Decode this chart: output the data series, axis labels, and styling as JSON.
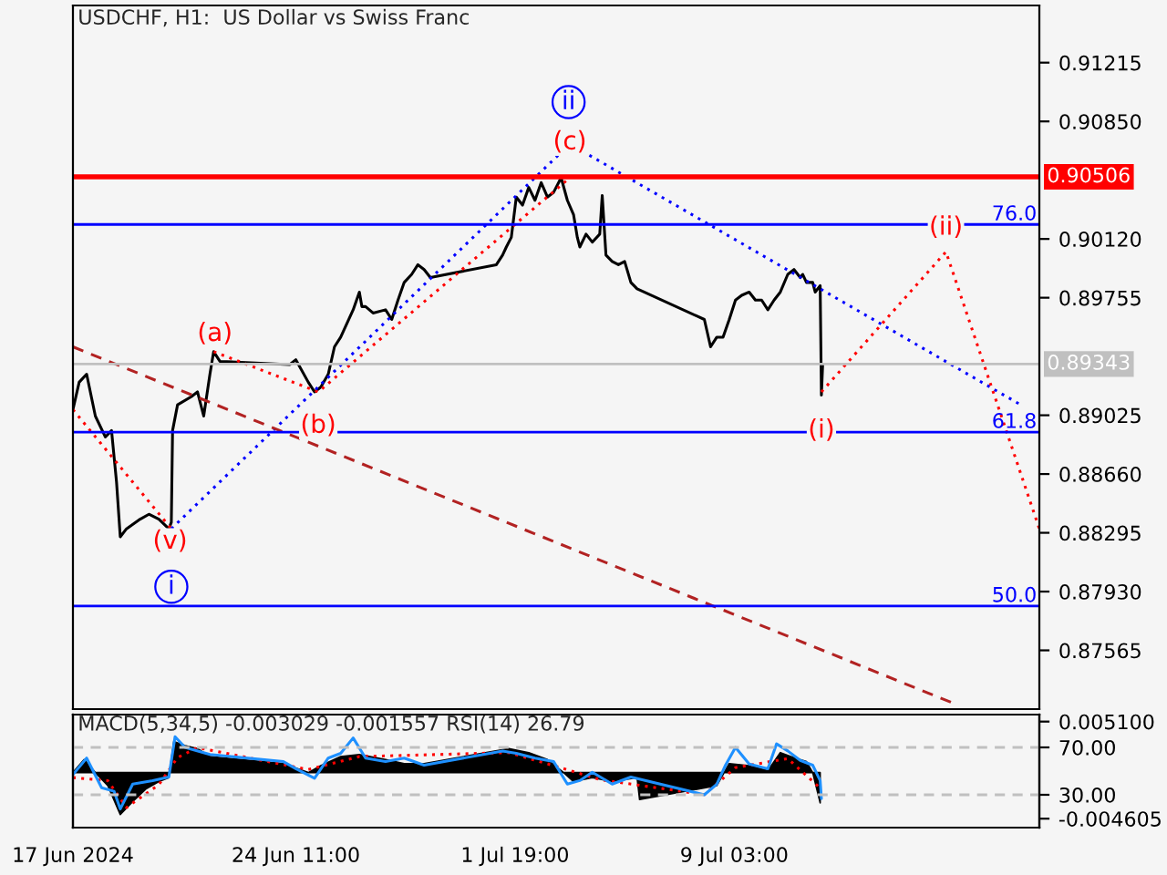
{
  "chart_data": [
    {
      "type": "line",
      "title": "USDCHF, H1:  US Dollar vs Swiss Franc",
      "xlim": [
        "2024-06-17T00:00",
        "2024-07-19T08:00"
      ],
      "ylim": [
        0.872,
        0.9157
      ],
      "xticks": [
        {
          "value": "2024-06-17T00:00",
          "label": null
        },
        {
          "value": "2024-06-24T11:00",
          "label": null
        },
        {
          "value": "2024-07-01T19:00",
          "label": null
        },
        {
          "value": "2024-07-09T03:00",
          "label": null
        }
      ],
      "yticks": [
        0.91215,
        {
          "value": 0.9085,
          "label": "0.90850"
        },
        {
          "value": 0.9012,
          "label": "0.90120"
        },
        0.89755,
        0.89025,
        {
          "value": 0.8866,
          "label": "0.88660"
        },
        0.88295,
        {
          "value": 0.8793,
          "label": "0.87930"
        },
        0.87565
      ],
      "tick_labels": "y",
      "legend": false,
      "grid": false,
      "series": [
        {
          "color": "#000000",
          "line_style": "solid",
          "x": [
            "2024-06-17T00:00",
            "2024-06-17T05:00",
            "2024-06-17T11:00",
            "2024-06-17T18:00",
            "2024-06-18T02:00",
            "2024-06-18T07:00",
            "2024-06-18T11:00",
            "2024-06-18T14:00",
            "2024-06-18T19:00",
            "2024-06-19T06:00",
            "2024-06-19T13:00",
            "2024-06-19T21:00",
            "2024-06-20T05:00",
            "2024-06-20T07:00",
            "2024-06-20T08:00",
            "2024-06-20T12:00",
            "2024-06-20T23:00",
            "2024-06-21T04:00",
            "2024-06-21T09:00",
            "2024-06-21T14:00",
            "2024-06-21T17:00",
            "2024-06-21T22:00",
            "2024-06-24T06:00",
            "2024-06-24T11:00",
            "2024-06-24T21:00",
            "2024-06-25T02:00",
            "2024-06-25T07:00",
            "2024-06-25T13:00",
            "2024-06-25T18:00",
            "2024-06-25T23:00",
            "2024-06-26T09:00",
            "2024-06-26T14:00",
            "2024-06-26T16:00",
            "2024-06-26T19:00",
            "2024-06-27T01:00",
            "2024-06-27T11:00",
            "2024-06-27T16:00",
            "2024-06-27T21:00",
            "2024-06-28T02:00",
            "2024-06-28T08:00",
            "2024-06-28T13:00",
            "2024-06-28T18:00",
            "2024-06-28T23:00",
            "2024-07-01T04:00",
            "2024-07-01T09:00",
            "2024-07-01T12:00",
            "2024-07-01T16:00",
            "2024-07-01T20:00",
            "2024-07-02T01:00",
            "2024-07-02T06:00",
            "2024-07-02T11:00",
            "2024-07-02T16:00",
            "2024-07-02T21:00",
            "2024-07-03T02:00",
            "2024-07-03T08:00",
            "2024-07-03T13:00",
            "2024-07-03T18:00",
            "2024-07-03T21:00",
            "2024-07-03T23:00",
            "2024-07-04T04:00",
            "2024-07-04T09:00",
            "2024-07-04T15:00",
            "2024-07-04T17:00",
            "2024-07-04T20:00",
            "2024-07-05T01:00",
            "2024-07-05T06:00",
            "2024-07-05T11:00",
            "2024-07-05T16:00",
            "2024-07-05T21:00",
            "2024-07-08T03:00",
            "2024-07-08T08:00",
            "2024-07-08T13:00",
            "2024-07-08T18:00",
            "2024-07-08T23:00",
            "2024-07-09T04:00",
            "2024-07-09T09:00",
            "2024-07-09T15:00",
            "2024-07-09T20:00",
            "2024-07-10T01:00",
            "2024-07-10T06:00",
            "2024-07-10T11:00",
            "2024-07-10T16:00",
            "2024-07-10T22:00",
            "2024-07-11T03:00",
            "2024-07-11T08:00",
            "2024-07-11T10:00",
            "2024-07-11T13:00",
            "2024-07-11T18:00",
            "2024-07-11T20:00",
            "2024-07-12T00:00",
            "2024-07-12T01:00",
            "2024-07-12T02:00"
          ],
          "values": [
            0.8906,
            0.8923,
            0.8928,
            0.8902,
            0.8889,
            0.8893,
            0.8861,
            0.8827,
            0.8832,
            0.8838,
            0.8841,
            0.8838,
            0.8832,
            0.8836,
            0.8893,
            0.8909,
            0.8914,
            0.8917,
            0.8902,
            0.8928,
            0.8942,
            0.8936,
            0.8934,
            0.8937,
            0.8923,
            0.8917,
            0.892,
            0.8928,
            0.8945,
            0.8951,
            0.8968,
            0.8979,
            0.897,
            0.897,
            0.8966,
            0.8968,
            0.8962,
            0.8974,
            0.8985,
            0.899,
            0.8996,
            0.8993,
            0.8988,
            0.8996,
            0.9002,
            0.9007,
            0.9013,
            0.9038,
            0.9033,
            0.9044,
            0.9036,
            0.9047,
            0.9038,
            0.9041,
            0.905,
            0.9036,
            0.9027,
            0.9013,
            0.9007,
            0.9015,
            0.901,
            0.9015,
            0.9039,
            0.9002,
            0.8998,
            0.8996,
            0.8998,
            0.8985,
            0.8981,
            0.8962,
            0.8945,
            0.8951,
            0.8951,
            0.8962,
            0.8974,
            0.8977,
            0.8979,
            0.8974,
            0.8974,
            0.8968,
            0.8974,
            0.8979,
            0.899,
            0.8993,
            0.8988,
            0.899,
            0.8985,
            0.8985,
            0.8979,
            0.8983,
            0.8915,
            0.8934
          ]
        },
        {
          "color": "#ff0000",
          "line_style": "dotted",
          "x": [
            "2024-06-17T00:00",
            "2024-06-20T07:00"
          ],
          "values": [
            0.8906,
            0.8832
          ]
        },
        {
          "color": "#ff0000",
          "line_style": "dotted",
          "x": [
            "2024-06-21T17:00",
            "2024-06-25T05:00",
            "2024-07-03T15:00"
          ],
          "values": [
            0.8942,
            0.8917,
            0.905
          ]
        },
        {
          "color": "#0000ff",
          "line_style": "dotted",
          "x": [
            "2024-06-20T07:00",
            "2024-07-03T15:00",
            "2024-07-18T17:00"
          ],
          "values": [
            0.8832,
            0.9071,
            0.8909
          ]
        },
        {
          "color": "#ff0000",
          "line_style": "dotted",
          "x": [
            "2024-07-12T01:00",
            "2024-07-16T05:00",
            "2024-07-19T08:00"
          ],
          "values": [
            0.8917,
            0.9004,
            0.8832
          ]
        },
        {
          "color": "#b22222",
          "line_style": "dashed",
          "x": [
            "2024-06-17T00:00",
            "2024-07-16T13:00"
          ],
          "values": [
            0.8945,
            0.8723
          ]
        }
      ],
      "ref_lines": [
        {
          "axis": "y",
          "value": 0.90506,
          "label": "0.90506",
          "color": "#ff0000"
        },
        {
          "axis": "y",
          "value": 0.9021,
          "color": "#0000ff"
        },
        {
          "axis": "y",
          "value": 0.89343,
          "label": "0.89343",
          "color": "#c0c0c0"
        },
        {
          "axis": "y",
          "value": 0.8892,
          "color": "#0000ff"
        },
        {
          "axis": "y",
          "value": 0.8784,
          "color": "#0000ff"
        }
      ],
      "annotations": [
        {
          "text": "(a)",
          "x": "2024-06-21T18:00",
          "y": 0.8953
        },
        {
          "text": "(b)",
          "x": "2024-06-25T05:00",
          "y": 0.8896
        },
        {
          "text": "(c)",
          "x": "2024-07-03T15:00",
          "y": 0.9072
        },
        {
          "text": "(v)",
          "x": "2024-06-20T06:00",
          "y": 0.8824
        },
        {
          "text": "(i)",
          "x": "2024-07-12T01:00",
          "y": 0.8893
        },
        {
          "text": "(ii)",
          "x": "2024-07-16T05:00",
          "y": 0.9019
        },
        {
          "text": "ii",
          "x": "2024-07-03T14:00",
          "y": 0.9097
        },
        {
          "text": "i",
          "x": "2024-06-20T07:00",
          "y": 0.8796
        },
        {
          "text": "76.0",
          "x": "2024-07-19T06:00",
          "y": 0.9021
        },
        {
          "text": "61.8",
          "x": "2024-07-19T06:00",
          "y": 0.8892
        },
        {
          "text": "50.0",
          "x": "2024-07-19T06:00",
          "y": 0.8784
        }
      ]
    },
    {
      "type": "line",
      "title": "MACD(5,34,5) -0.003029 -0.001557 RSI(14) 26.79",
      "xlim": [
        "2024-06-17T00:00",
        "2024-07-19T08:00"
      ],
      "ylim": [
        -0.0055,
        0.0058
      ],
      "y2lim": [
        2.3,
        97.7
      ],
      "xticks": [
        {
          "value": "2024-06-17T00:00",
          "label": "17 Jun 2024"
        },
        {
          "value": "2024-06-24T11:00",
          "label": "24 Jun 11:00"
        },
        {
          "value": "2024-07-01T19:00",
          "label": "1 Jul 19:00"
        },
        {
          "value": "2024-07-09T03:00",
          "label": "9 Jul 03:00"
        }
      ],
      "yticks": [
        {
          "value": 0.0051,
          "label": "0.005100"
        },
        -0.004605
      ],
      "y2ticks": [
        {
          "value": 70,
          "label": "70.00"
        },
        {
          "value": 30,
          "label": "30.00"
        }
      ],
      "legend": false,
      "grid": false,
      "series": [
        {
          "type": "area",
          "color": "#000000",
          "x": [
            "2024-06-17T00:00",
            "2024-06-17T09:00",
            "2024-06-17T18:00",
            "2024-06-18T04:00",
            "2024-06-18T14:00",
            "2024-06-19T00:00",
            "2024-06-19T11:00",
            "2024-06-19T21:00",
            "2024-06-20T05:00",
            "2024-06-20T09:00",
            "2024-06-20T18:00",
            "2024-06-21T04:00",
            "2024-06-21T14:00",
            "2024-06-24T01:00",
            "2024-06-24T21:00",
            "2024-06-25T07:00",
            "2024-06-25T23:00",
            "2024-06-26T14:00",
            "2024-06-27T11:00",
            "2024-06-28T02:00",
            "2024-06-28T18:00",
            "2024-07-01T14:00",
            "2024-07-02T06:00",
            "2024-07-02T21:00",
            "2024-07-03T10:00",
            "2024-07-03T18:00",
            "2024-07-04T09:00",
            "2024-07-05T01:00",
            "2024-07-05T21:00",
            "2024-07-05T23:00",
            "2024-07-08T13:00",
            "2024-07-08T23:00",
            "2024-07-09T15:00",
            "2024-07-10T06:00",
            "2024-07-10T16:00",
            "2024-07-11T03:00",
            "2024-07-11T13:00",
            "2024-07-11T18:00",
            "2024-07-12T00:00"
          ],
          "values": [
            0,
            0.0013,
            0,
            -0.0013,
            -0.0042,
            -0.0029,
            -0.0016,
            -0.0009,
            -0.0005,
            0.0031,
            0.0027,
            0.0024,
            0.0016,
            0.0009,
            0,
            0.0007,
            0.0016,
            0.0018,
            0.0013,
            0.0009,
            0.0009,
            0.0024,
            0.002,
            0.0013,
            0,
            -0.0009,
            -0.0005,
            -0.0009,
            -0.0005,
            -0.0027,
            -0.0013,
            0.0009,
            0.0007,
            0.0002,
            0.002,
            0.0015,
            0.0011,
            0,
            -0.003029
          ]
        },
        {
          "type": "line",
          "color": "#ff0000",
          "line_style": "dotted",
          "x": [
            "2024-06-17T00:00",
            "2024-06-18T04:00",
            "2024-06-18T19:00",
            "2024-06-19T21:00",
            "2024-06-20T12:00",
            "2024-06-21T04:00",
            "2024-06-24T21:00",
            "2024-06-26T14:00",
            "2024-07-01T14:00",
            "2024-07-03T10:00",
            "2024-07-04T15:00",
            "2024-07-08T03:00",
            "2024-07-09T04:00",
            "2024-07-10T22:00",
            "2024-07-12T00:00"
          ],
          "values": [
            -0.0005,
            -0.0008,
            -0.0035,
            -0.0012,
            0.0015,
            0.0025,
            0.0003,
            0.0016,
            0.002,
            0.0004,
            -0.0007,
            -0.0022,
            0.0005,
            0.0014,
            -0.001557
          ]
        },
        {
          "type": "line",
          "color": "#1e90ff",
          "axis": "y2",
          "line_style": "solid",
          "x": [
            "2024-06-17T00:00",
            "2024-06-17T11:00",
            "2024-06-17T23:00",
            "2024-06-18T09:00",
            "2024-06-18T14:00",
            "2024-06-19T00:00",
            "2024-06-19T16:00",
            "2024-06-20T05:00",
            "2024-06-20T10:00",
            "2024-06-20T18:00",
            "2024-06-21T14:00",
            "2024-06-24T01:00",
            "2024-06-24T11:00",
            "2024-06-25T02:00",
            "2024-06-25T13:00",
            "2024-06-25T23:00",
            "2024-06-26T09:00",
            "2024-06-26T19:00",
            "2024-06-27T11:00",
            "2024-06-28T02:00",
            "2024-06-28T18:00",
            "2024-07-01T09:00",
            "2024-07-01T20:00",
            "2024-07-02T11:00",
            "2024-07-03T02:00",
            "2024-07-03T13:00",
            "2024-07-03T23:00",
            "2024-07-04T09:00",
            "2024-07-05T01:00",
            "2024-07-05T16:00",
            "2024-07-08T03:00",
            "2024-07-08T13:00",
            "2024-07-08T20:00",
            "2024-07-09T04:00",
            "2024-07-09T15:00",
            "2024-07-10T06:00",
            "2024-07-10T13:00",
            "2024-07-10T22:00",
            "2024-07-11T08:00",
            "2024-07-11T18:00",
            "2024-07-12T00:00",
            "2024-07-12T01:00"
          ],
          "values": [
            47,
            61,
            36,
            33,
            18,
            39,
            42,
            45,
            79,
            70,
            64,
            58,
            52,
            44,
            61,
            65,
            78,
            61,
            58,
            61,
            55,
            67,
            65,
            61,
            58,
            39,
            42,
            49,
            39,
            45,
            30,
            39,
            55,
            70,
            56,
            52,
            73,
            67,
            59,
            55,
            42,
            26.79
          ]
        }
      ],
      "ref_lines": [
        {
          "axis": "y2",
          "value": 70,
          "color": "#c0c0c0",
          "line_style": "dashed"
        },
        {
          "axis": "y2",
          "value": 30,
          "color": "#c0c0c0",
          "line_style": "dashed"
        }
      ]
    }
  ]
}
